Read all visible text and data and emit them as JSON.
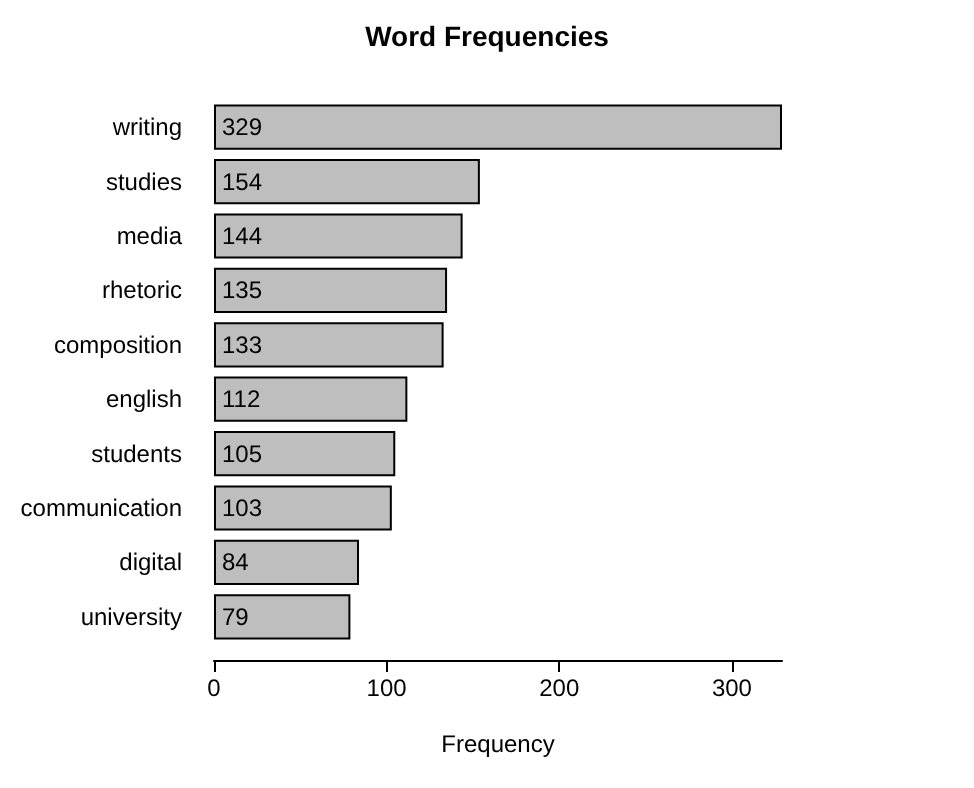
{
  "chart_data": {
    "type": "bar",
    "orientation": "horizontal",
    "title": "Word Frequencies",
    "xlabel": "Frequency",
    "categories": [
      "writing",
      "studies",
      "media",
      "rhetoric",
      "composition",
      "english",
      "students",
      "communication",
      "digital",
      "university"
    ],
    "values": [
      329,
      154,
      144,
      135,
      133,
      112,
      105,
      103,
      84,
      79
    ],
    "color": "#bebebe",
    "xlim": [
      0,
      329
    ],
    "xticks": [
      0,
      100,
      200,
      300
    ],
    "data_labels": true,
    "grid": false
  }
}
